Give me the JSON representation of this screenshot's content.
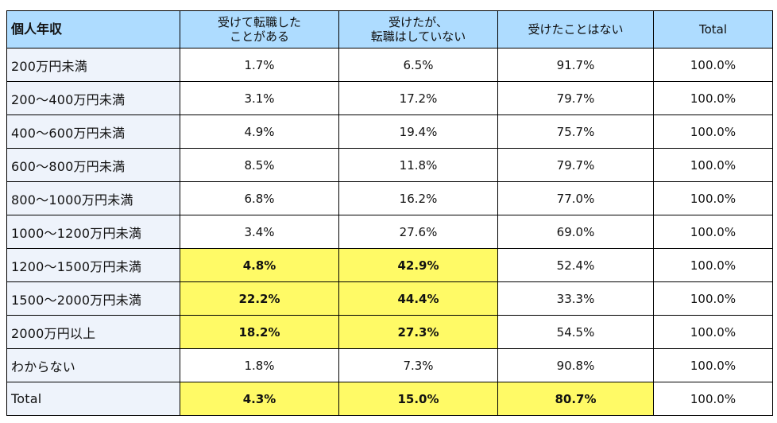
{
  "table": {
    "headers": [
      "個人年収",
      "受けて転職した\nことがある",
      "受けたが、\n転職はしていない",
      "受けたことはない",
      "Total"
    ],
    "rows": [
      {
        "label": "200万円未満",
        "cells": [
          "1.7%",
          "6.5%",
          "91.7%",
          "100.0%"
        ]
      },
      {
        "label": "200～400万円未満",
        "cells": [
          "3.1%",
          "17.2%",
          "79.7%",
          "100.0%"
        ]
      },
      {
        "label": "400～600万円未満",
        "cells": [
          "4.9%",
          "19.4%",
          "75.7%",
          "100.0%"
        ]
      },
      {
        "label": "600～800万円未満",
        "cells": [
          "8.5%",
          "11.8%",
          "79.7%",
          "100.0%"
        ]
      },
      {
        "label": "800～1000万円未満",
        "cells": [
          "6.8%",
          "16.2%",
          "77.0%",
          "100.0%"
        ]
      },
      {
        "label": "1000～1200万円未満",
        "cells": [
          "3.4%",
          "27.6%",
          "69.0%",
          "100.0%"
        ]
      },
      {
        "label": "1200～1500万円未満",
        "cells": [
          "4.8%",
          "42.9%",
          "52.4%",
          "100.0%"
        ]
      },
      {
        "label": "1500～2000万円未満",
        "cells": [
          "22.2%",
          "44.4%",
          "33.3%",
          "100.0%"
        ]
      },
      {
        "label": "2000万円以上",
        "cells": [
          "18.2%",
          "27.3%",
          "54.5%",
          "100.0%"
        ]
      },
      {
        "label": "わからない",
        "cells": [
          "1.8%",
          "7.3%",
          "90.8%",
          "100.0%"
        ]
      },
      {
        "label": "Total",
        "cells": [
          "4.3%",
          "15.0%",
          "80.7%",
          "100.0%"
        ]
      }
    ],
    "highlight_color": "#fffa66",
    "header_color": "#aedcff"
  }
}
